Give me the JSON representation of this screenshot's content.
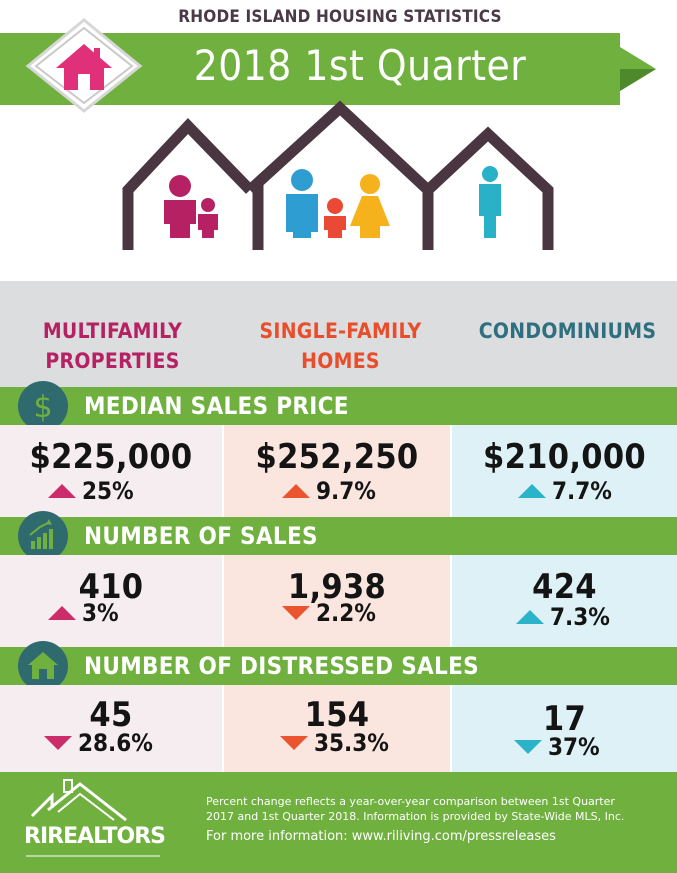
{
  "header": {
    "supertitle": "RHODE ISLAND HOUSING STATISTICS",
    "title": "2018 1st Quarter"
  },
  "categories": {
    "multi": "MULTIFAMILY PROPERTIES",
    "single": "SINGLE-FAMILY HOMES",
    "condo": "CONDOMINIUMS"
  },
  "sections": [
    {
      "title": "MEDIAN SALES PRICE",
      "icon": "dollar-icon",
      "multi": {
        "value": "$225,000",
        "change": "25%",
        "direction": "up"
      },
      "single": {
        "value": "$252,250",
        "change": "9.7%",
        "direction": "up"
      },
      "condo": {
        "value": "$210,000",
        "change": "7.7%",
        "direction": "up"
      }
    },
    {
      "title": "NUMBER OF SALES",
      "icon": "bar-chart-icon",
      "multi": {
        "value": "410",
        "change": "3%",
        "direction": "up"
      },
      "single": {
        "value": "1,938",
        "change": "2.2%",
        "direction": "down"
      },
      "condo": {
        "value": "424",
        "change": "7.3%",
        "direction": "up"
      }
    },
    {
      "title": "NUMBER OF DISTRESSED SALES",
      "icon": "house-icon",
      "multi": {
        "value": "45",
        "change": "28.6%",
        "direction": "down"
      },
      "single": {
        "value": "154",
        "change": "35.3%",
        "direction": "down"
      },
      "condo": {
        "value": "17",
        "change": "37%",
        "direction": "down"
      }
    }
  ],
  "footer": {
    "logo_text": "RIREALTORS",
    "note": "Percent change reflects a year-over-year comparison between 1st Quarter 2017 and 1st Quarter 2018. Information is provided by State-Wide MLS, Inc.",
    "more_info": "For more information: www.riliving.com/pressreleases"
  },
  "colors": {
    "green": "#6fb03e",
    "teal_circle": "#2f6a6e",
    "multi": "#b52162",
    "single": "#e84e2b",
    "condo": "#2e6f80"
  }
}
